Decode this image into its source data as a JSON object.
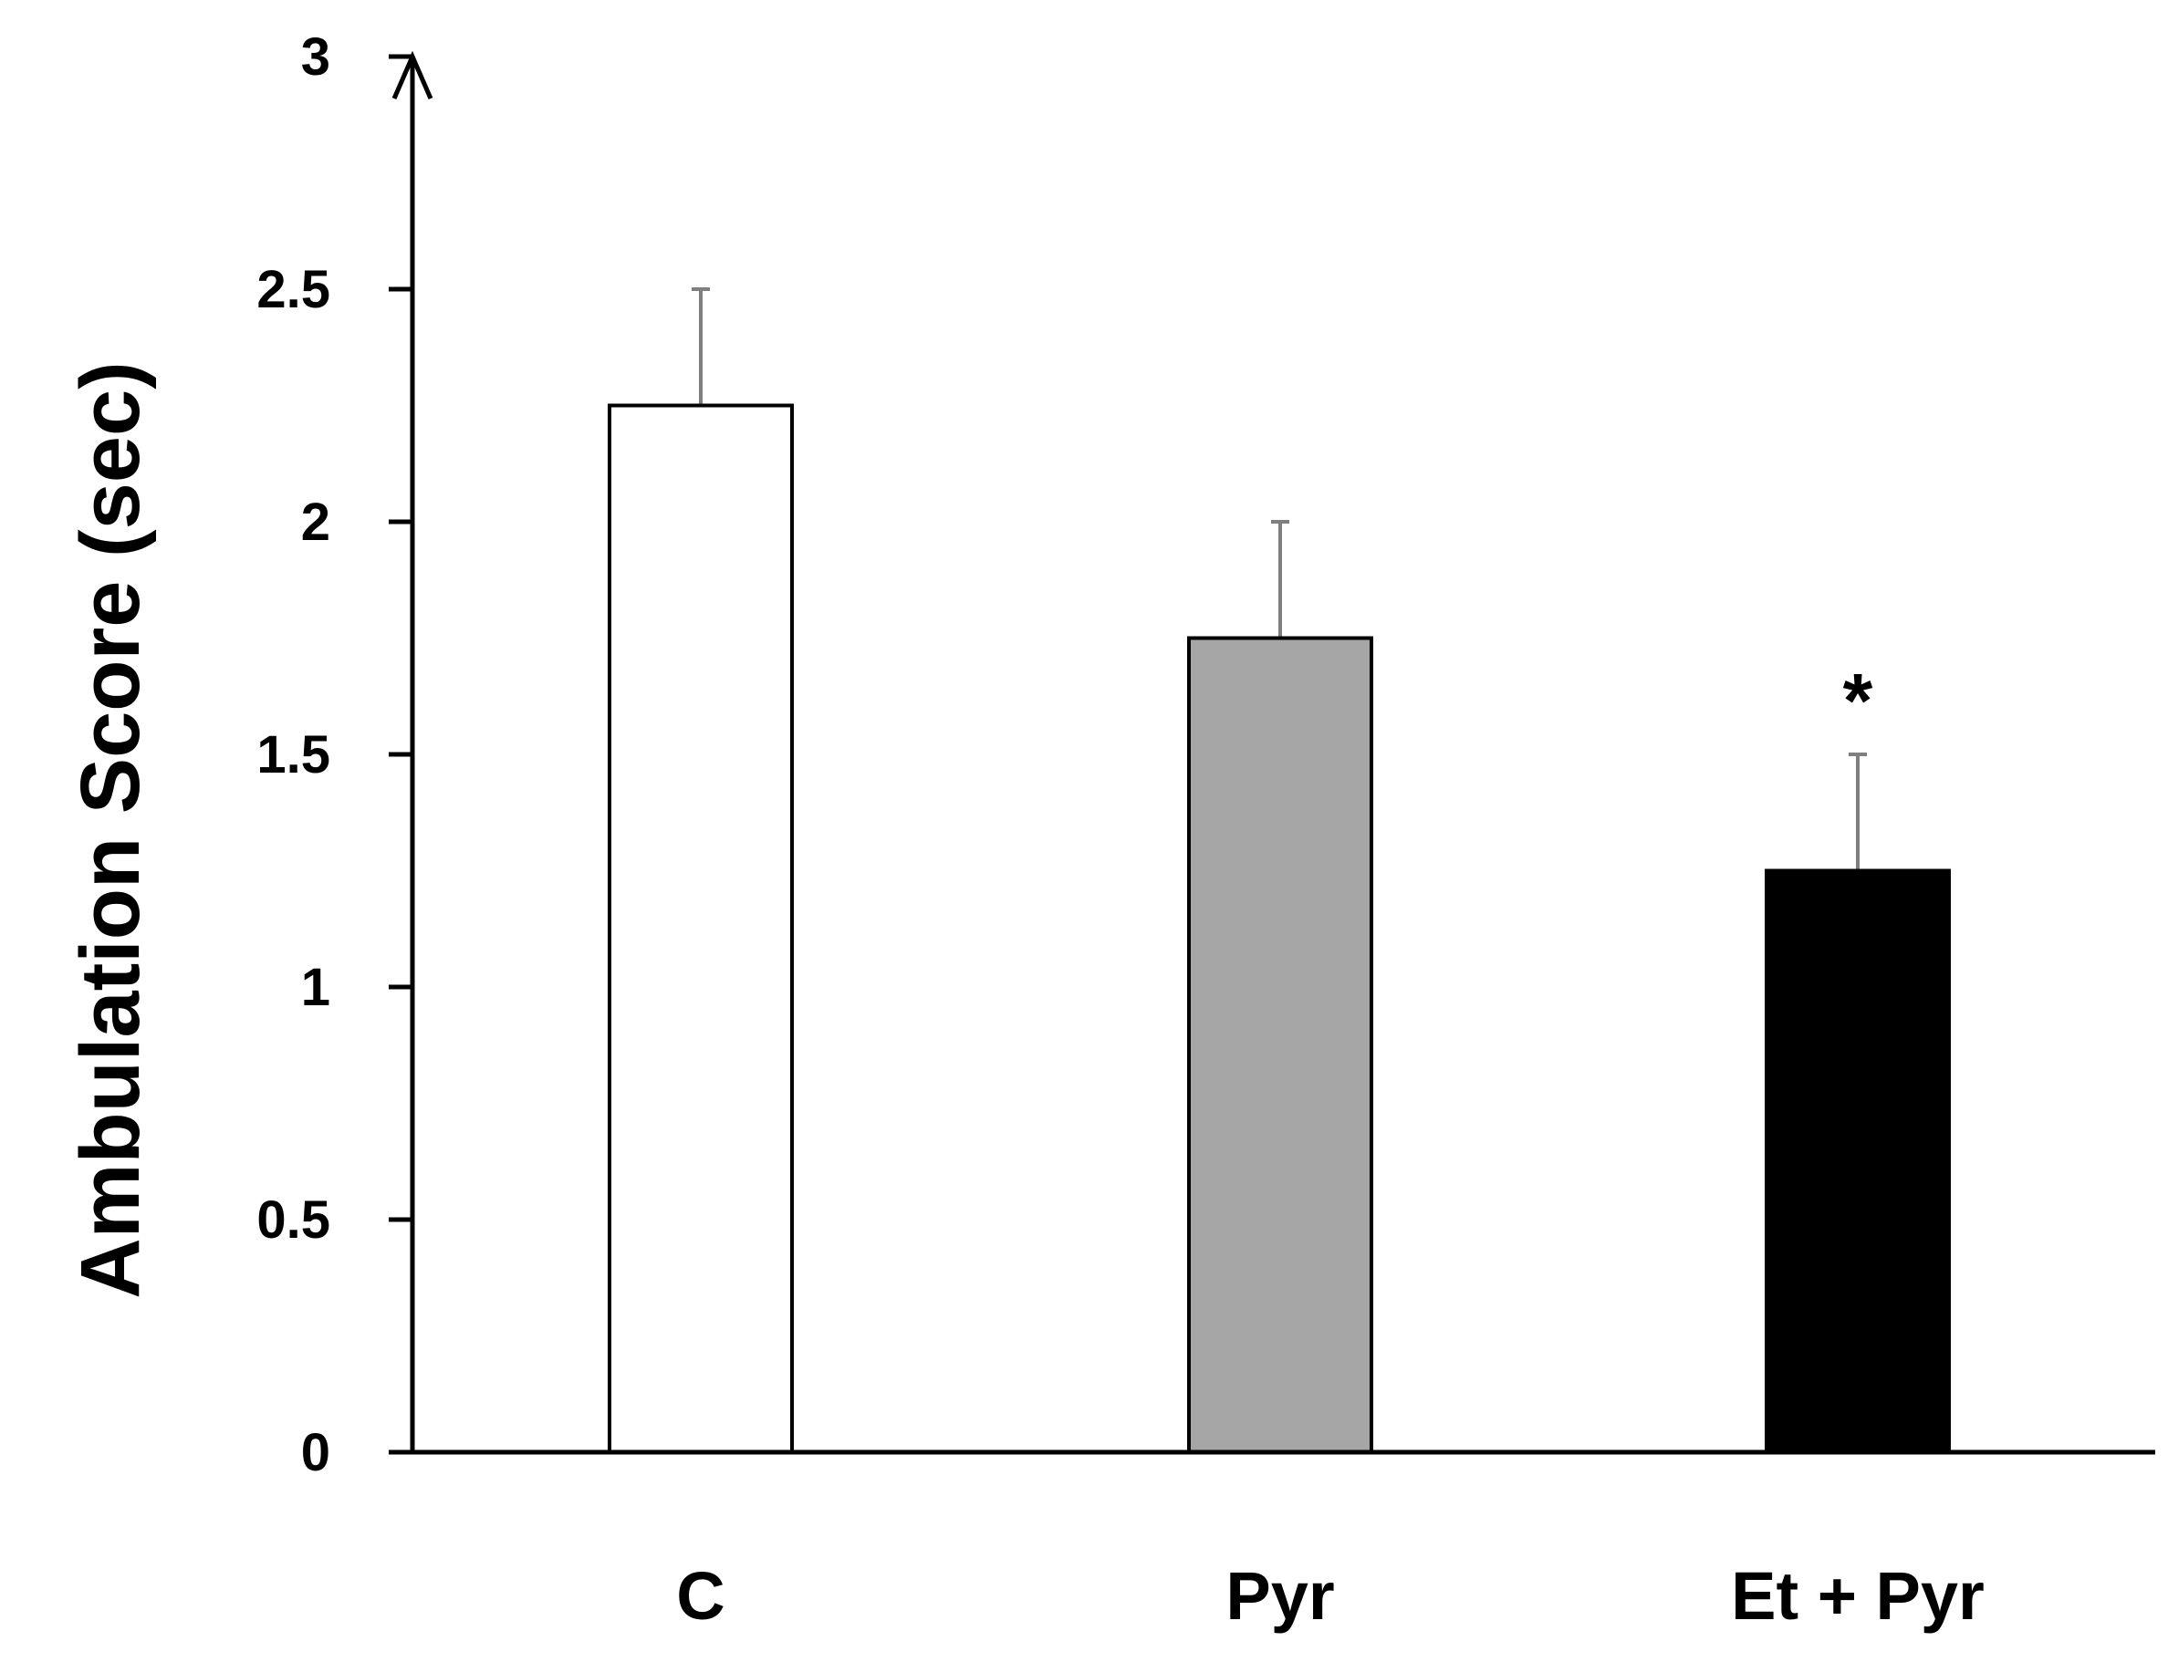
{
  "chart_data": {
    "type": "bar",
    "title": "",
    "xlabel": "",
    "ylabel": "Ambulation Score (sec)",
    "categories": [
      "C",
      "Pyr",
      "Et + Pyr"
    ],
    "values": [
      2.25,
      1.75,
      1.25
    ],
    "errors": [
      0.25,
      0.25,
      0.25
    ],
    "bar_colors": [
      "#ffffff",
      "#a6a6a6",
      "#000000"
    ],
    "error_bar_color": "#7f7f7f",
    "ylim": [
      0,
      3
    ],
    "yticks": [
      0,
      0.5,
      1,
      1.5,
      2,
      2.5,
      3
    ],
    "ytick_labels": [
      "0",
      "0.5",
      "1",
      "1.5",
      "2",
      "2.5",
      "3"
    ],
    "grid": false,
    "annotations": [
      {
        "category": "Et + Pyr",
        "text": "*"
      }
    ]
  }
}
